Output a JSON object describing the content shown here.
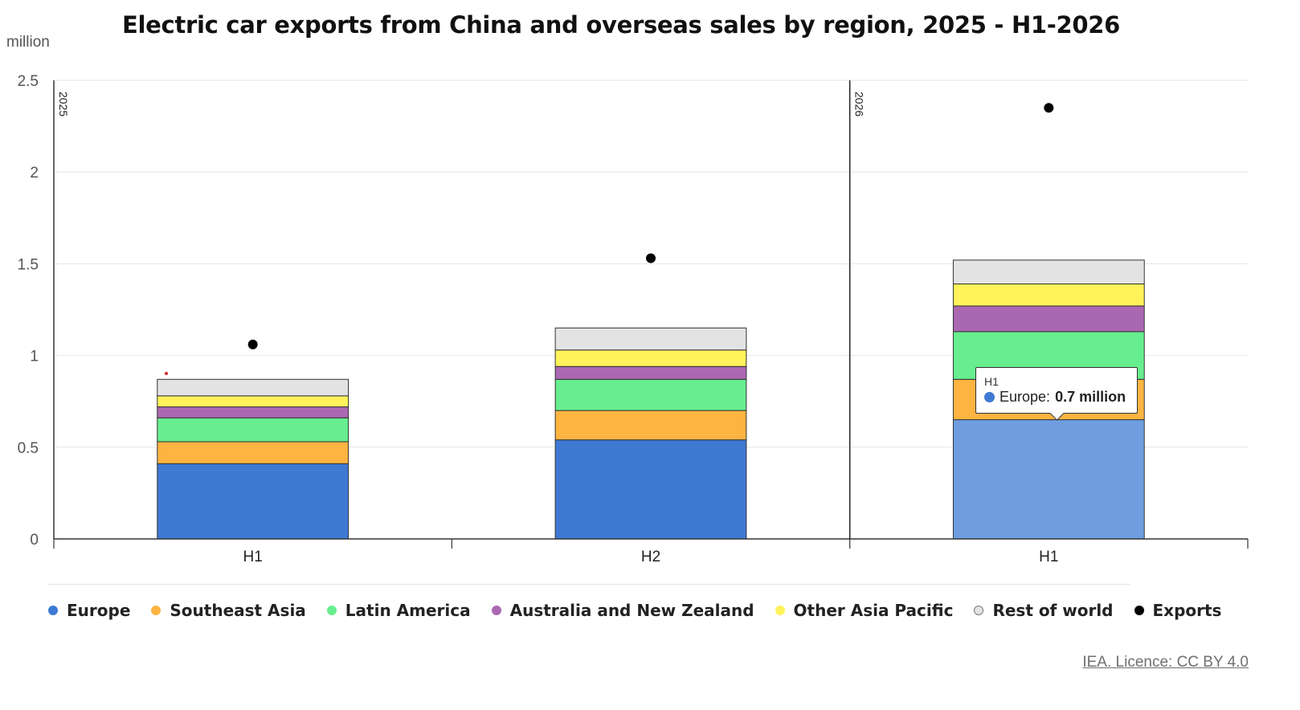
{
  "chart_data": {
    "type": "bar",
    "stacked": true,
    "title": "Electric car exports from China and overseas sales by region, 2025 - H1-2026",
    "ylabel": "million",
    "ylim": [
      0,
      2.5
    ],
    "yticks": [
      "0",
      "0.5",
      "1",
      "1.5",
      "2",
      "2.5"
    ],
    "groups": [
      {
        "label": "2025",
        "categories": [
          "H1",
          "H2"
        ]
      },
      {
        "label": "2026",
        "categories": [
          "H1"
        ]
      }
    ],
    "categories": [
      "H1",
      "H2",
      "H1"
    ],
    "series": [
      {
        "name": "Europe",
        "color": "#3e79d4",
        "values": [
          0.41,
          0.54,
          0.65
        ]
      },
      {
        "name": "Southeast Asia",
        "color": "#fdb441",
        "values": [
          0.12,
          0.16,
          0.22
        ]
      },
      {
        "name": "Latin America",
        "color": "#67ee8f",
        "values": [
          0.13,
          0.17,
          0.26
        ]
      },
      {
        "name": "Australia and New Zealand",
        "color": "#ab68b2",
        "values": [
          0.06,
          0.07,
          0.14
        ]
      },
      {
        "name": "Other Asia Pacific",
        "color": "#fff25a",
        "values": [
          0.06,
          0.09,
          0.12
        ]
      },
      {
        "name": "Rest of world",
        "color": "#e3e3e3",
        "values": [
          0.09,
          0.12,
          0.13
        ]
      }
    ],
    "exports": {
      "name": "Exports",
      "color": "#000000",
      "values": [
        1.06,
        1.53,
        2.35
      ]
    },
    "grid": true,
    "legend_position": "bottom-left"
  },
  "tooltip": {
    "category": "H1",
    "series": "Europe",
    "value": "0.7 million",
    "color": "#3e79d4"
  },
  "credit": "IEA. Licence: CC BY 4.0"
}
